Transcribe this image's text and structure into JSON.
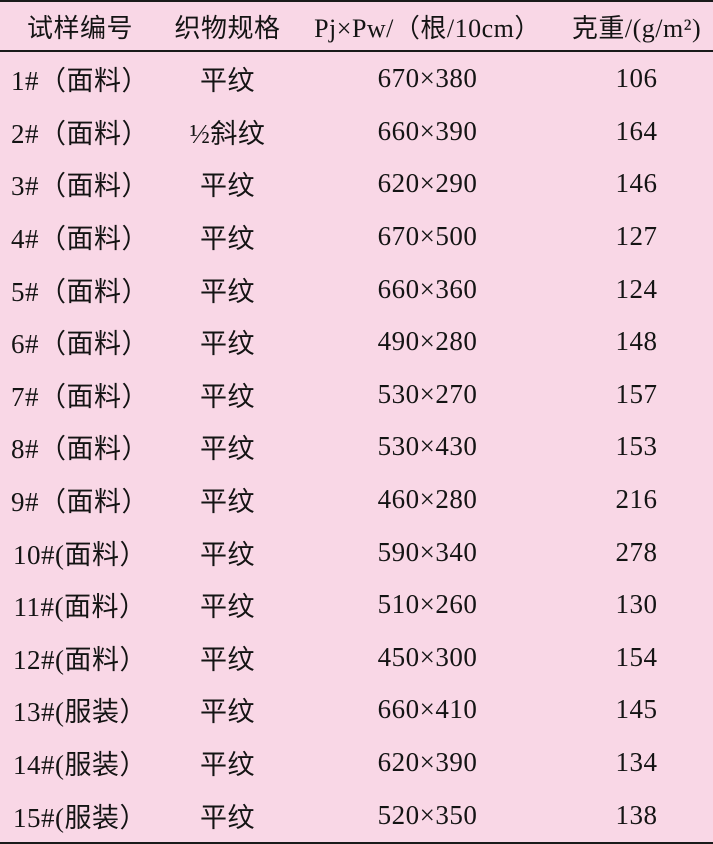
{
  "page": {
    "background_color": "#f9d7e6",
    "text_color": "#141414",
    "rule_color": "#1a1a1a"
  },
  "chart_data": {
    "type": "table",
    "columns": [
      "试样编号",
      "织物规格",
      "Pj×Pw/（根/10cm）",
      "克重/(g/m²)"
    ],
    "rows": [
      [
        "1#（面料）",
        "平纹",
        "670×380",
        "106"
      ],
      [
        "2#（面料）",
        "½斜纹",
        "660×390",
        "164"
      ],
      [
        "3#（面料）",
        "平纹",
        "620×290",
        "146"
      ],
      [
        "4#（面料）",
        "平纹",
        "670×500",
        "127"
      ],
      [
        "5#（面料）",
        "平纹",
        "660×360",
        "124"
      ],
      [
        "6#（面料）",
        "平纹",
        "490×280",
        "148"
      ],
      [
        "7#（面料）",
        "平纹",
        "530×270",
        "157"
      ],
      [
        "8#（面料）",
        "平纹",
        "530×430",
        "153"
      ],
      [
        "9#（面料）",
        "平纹",
        "460×280",
        "216"
      ],
      [
        "10#(面料）",
        "平纹",
        "590×340",
        "278"
      ],
      [
        "11#(面料）",
        "平纹",
        "510×260",
        "130"
      ],
      [
        "12#(面料）",
        "平纹",
        "450×300",
        "154"
      ],
      [
        "13#(服装）",
        "平纹",
        "660×410",
        "145"
      ],
      [
        "14#(服装）",
        "平纹",
        "620×390",
        "134"
      ],
      [
        "15#(服装）",
        "平纹",
        "520×350",
        "138"
      ]
    ]
  }
}
